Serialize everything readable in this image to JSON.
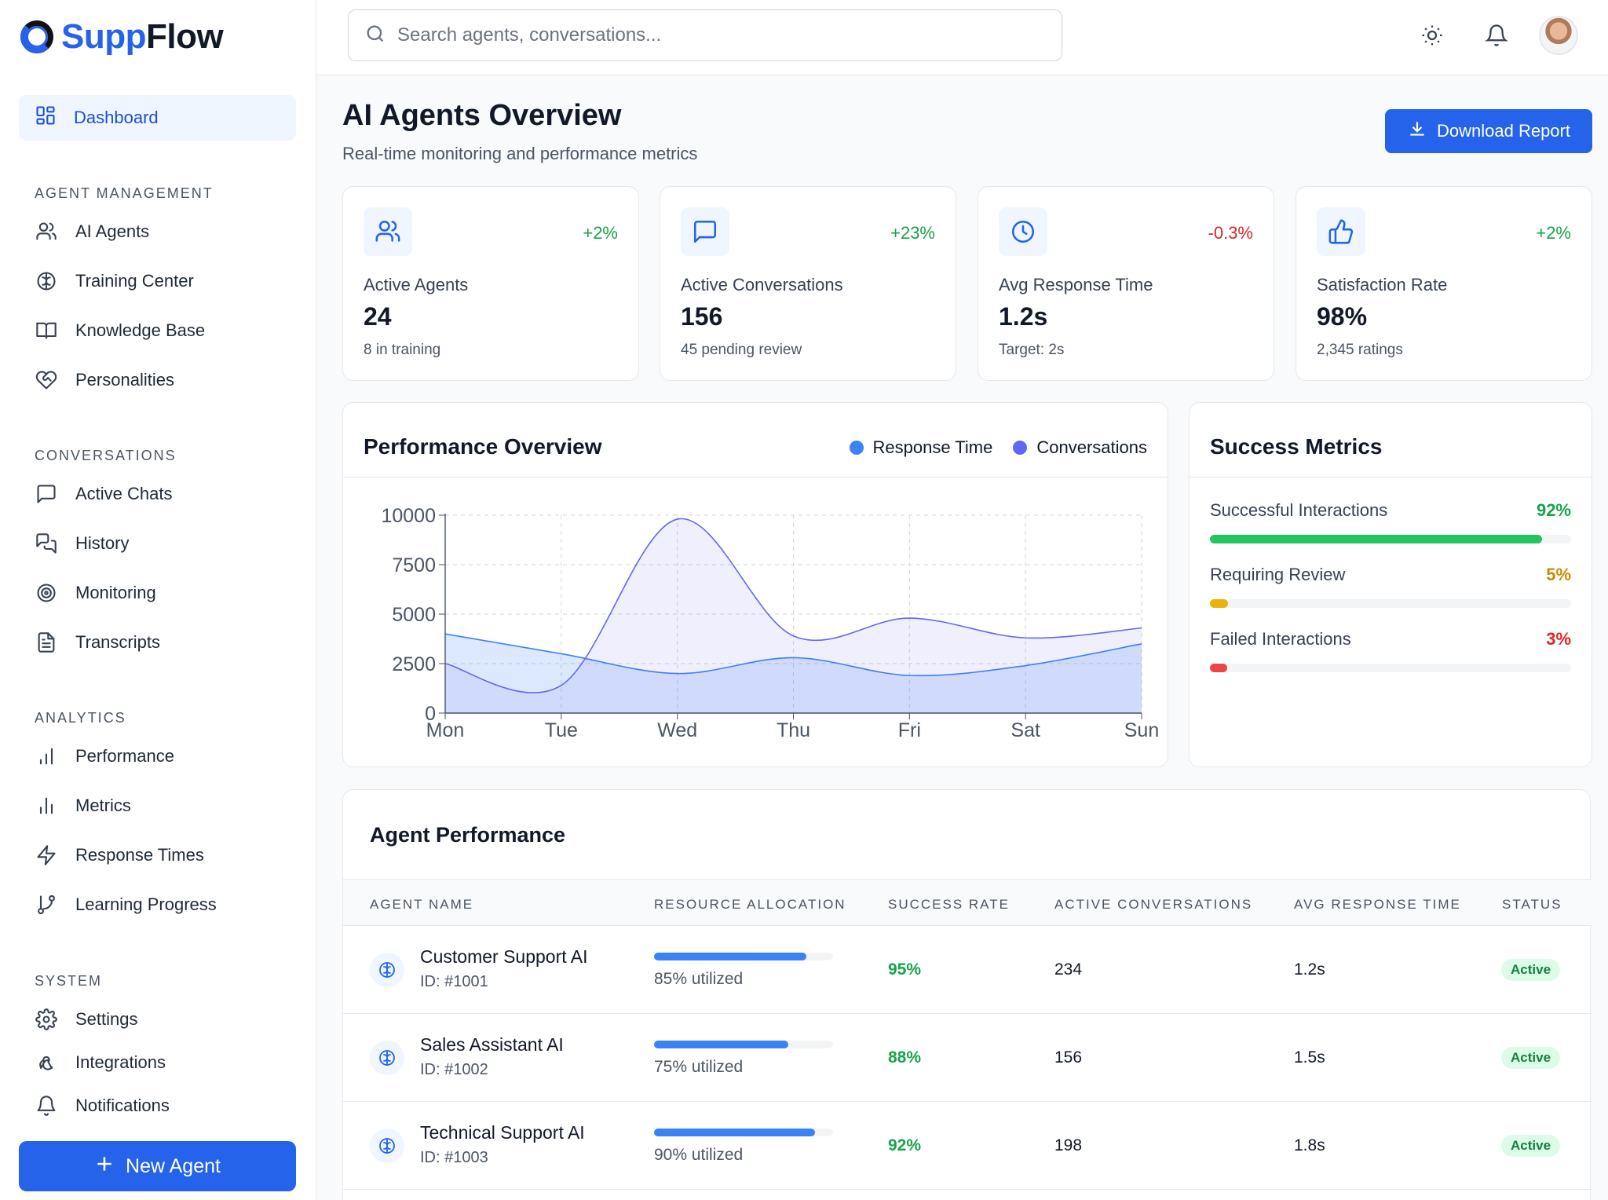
{
  "app": {
    "name_part1": "Supp",
    "name_part2": "Flow"
  },
  "sidebar": {
    "dashboard_label": "Dashboard",
    "sections": [
      {
        "title": "AGENT MANAGEMENT",
        "items": [
          {
            "label": "AI Agents",
            "icon": "users-icon"
          },
          {
            "label": "Training Center",
            "icon": "brain-icon"
          },
          {
            "label": "Knowledge Base",
            "icon": "book-icon"
          },
          {
            "label": "Personalities",
            "icon": "heart-handshake-icon"
          }
        ]
      },
      {
        "title": "CONVERSATIONS",
        "items": [
          {
            "label": "Active Chats",
            "icon": "message-square-icon"
          },
          {
            "label": "History",
            "icon": "messages-icon"
          },
          {
            "label": "Monitoring",
            "icon": "target-icon"
          },
          {
            "label": "Transcripts",
            "icon": "file-text-icon"
          }
        ]
      },
      {
        "title": "ANALYTICS",
        "items": [
          {
            "label": "Performance",
            "icon": "bar-chart-icon"
          },
          {
            "label": "Metrics",
            "icon": "bar-chart-2-icon"
          },
          {
            "label": "Response Times",
            "icon": "zap-icon"
          },
          {
            "label": "Learning Progress",
            "icon": "git-branch-icon"
          }
        ]
      },
      {
        "title": "SYSTEM",
        "items": [
          {
            "label": "Settings",
            "icon": "gear-icon"
          },
          {
            "label": "Integrations",
            "icon": "webhook-icon"
          },
          {
            "label": "Notifications",
            "icon": "bell-icon"
          }
        ]
      }
    ],
    "new_agent_label": "New Agent"
  },
  "header": {
    "search_placeholder": "Search agents, conversations...",
    "icons": [
      "sun-icon",
      "bell-icon",
      "avatar"
    ]
  },
  "main": {
    "title": "AI Agents Overview",
    "subtitle": "Real-time monitoring and performance metrics",
    "download_label": "Download Report",
    "stats": [
      {
        "label": "Active Agents",
        "value": "24",
        "sub": "8 in training",
        "change": "+2%",
        "trend": "pos",
        "icon": "users-icon"
      },
      {
        "label": "Active Conversations",
        "value": "156",
        "sub": "45 pending review",
        "change": "+23%",
        "trend": "pos",
        "icon": "message-square-icon"
      },
      {
        "label": "Avg Response Time",
        "value": "1.2s",
        "sub": "Target: 2s",
        "change": "-0.3%",
        "trend": "neg",
        "icon": "clock-icon"
      },
      {
        "label": "Satisfaction Rate",
        "value": "98%",
        "sub": "2,345 ratings",
        "change": "+2%",
        "trend": "pos",
        "icon": "thumbs-up-icon"
      }
    ],
    "performance_title": "Performance Overview",
    "success_title": "Success Metrics",
    "success_metrics": [
      {
        "label": "Successful Interactions",
        "value": "92%",
        "fraction": 0.92,
        "color": "#22c55e",
        "text_color": "#16a34a"
      },
      {
        "label": "Requiring Review",
        "value": "5%",
        "fraction": 0.05,
        "color": "#eab308",
        "text_color": "#ca8a04"
      },
      {
        "label": "Failed Interactions",
        "value": "3%",
        "fraction": 0.03,
        "color": "#ef4444",
        "text_color": "#dc2626"
      }
    ],
    "table_title": "Agent Performance",
    "table_headers": [
      "AGENT NAME",
      "RESOURCE ALLOCATION",
      "SUCCESS RATE",
      "ACTIVE CONVERSATIONS",
      "AVG RESPONSE TIME",
      "STATUS"
    ],
    "agents": [
      {
        "name": "Customer Support AI",
        "id": "ID: #1001",
        "alloc": 0.85,
        "alloc_label": "85% utilized",
        "success": "95%",
        "conversations": "234",
        "response": "1.2s",
        "status": "Active"
      },
      {
        "name": "Sales Assistant AI",
        "id": "ID: #1002",
        "alloc": 0.75,
        "alloc_label": "75% utilized",
        "success": "88%",
        "conversations": "156",
        "response": "1.5s",
        "status": "Active"
      },
      {
        "name": "Technical Support AI",
        "id": "ID: #1003",
        "alloc": 0.9,
        "alloc_label": "90% utilized",
        "success": "92%",
        "conversations": "198",
        "response": "1.8s",
        "status": "Active"
      }
    ]
  },
  "chart_data": {
    "type": "area",
    "x": [
      "Mon",
      "Tue",
      "Wed",
      "Thu",
      "Fri",
      "Sat",
      "Sun"
    ],
    "ylim": [
      0,
      10000
    ],
    "yticks": [
      0,
      2500,
      5000,
      7500,
      10000
    ],
    "grid": true,
    "legend_placement": "top-right",
    "series": [
      {
        "name": "Response Time",
        "color": "#3b82f6",
        "values": [
          4000,
          3000,
          2000,
          2800,
          1900,
          2400,
          3500
        ]
      },
      {
        "name": "Conversations",
        "color": "#6366f1",
        "values": [
          2500,
          1400,
          9800,
          3900,
          4800,
          3800,
          4300
        ]
      }
    ]
  }
}
